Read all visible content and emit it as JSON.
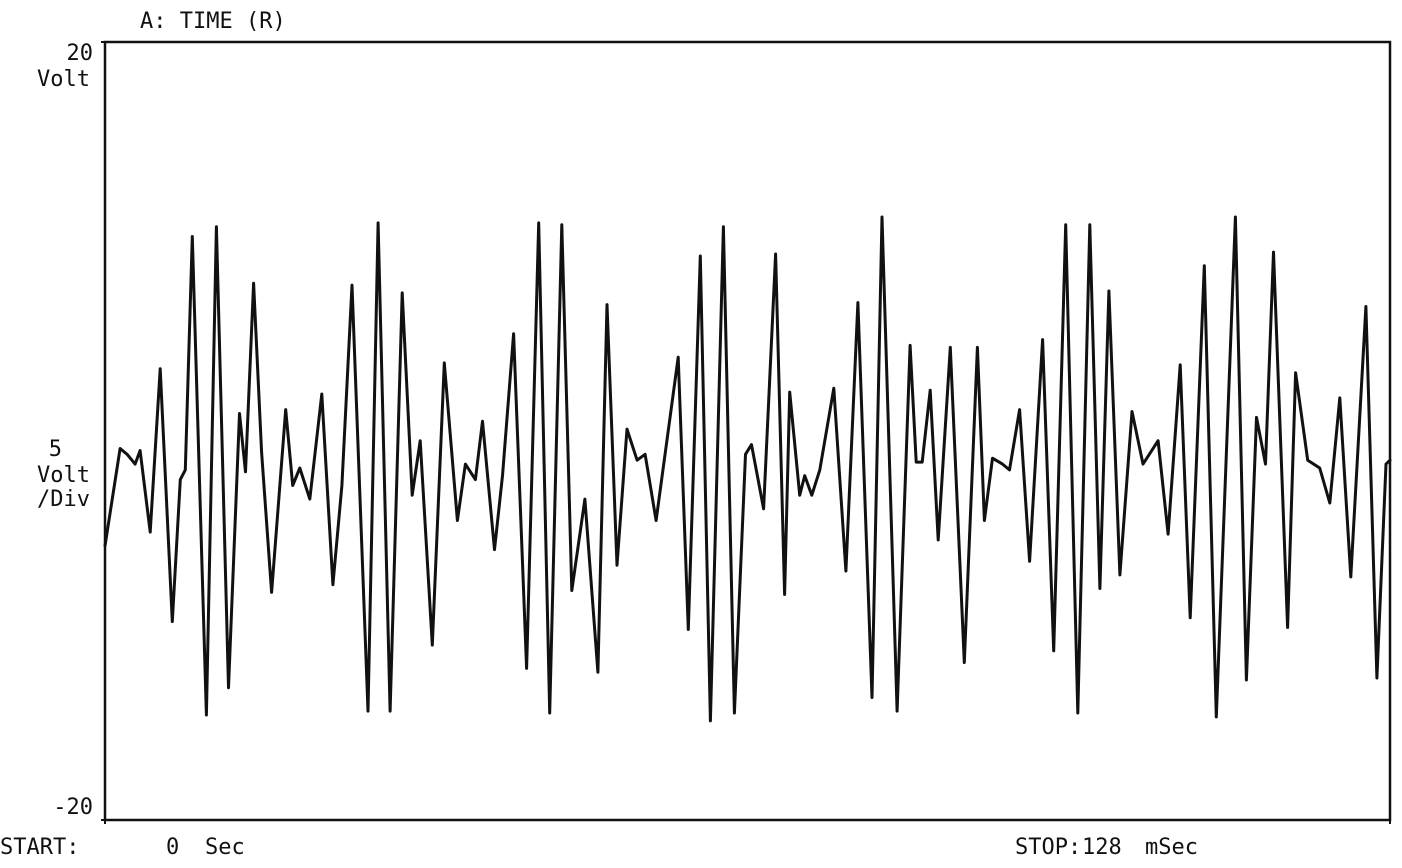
{
  "chart_data": {
    "type": "line",
    "title": "A: TIME (R)",
    "ylabel": "Volt",
    "y_scale": {
      "value": 5,
      "unit": "Volt",
      "per": "/Div"
    },
    "start_label": "START:",
    "start_unit": "Sec",
    "stop_label": "STOP:",
    "stop_unit": "mSec",
    "xlim": [
      0,
      128
    ],
    "xticks": [
      0,
      128
    ],
    "ylim": [
      -20,
      20
    ],
    "yticks": [
      -20,
      20
    ],
    "color": "#111111",
    "grid": false,
    "x": [
      0,
      1.5,
      2.2,
      3.0,
      3.5,
      4.5,
      5.5,
      6.7,
      7.5,
      8.0,
      8.7,
      10.1,
      11.1,
      12.3,
      13.4,
      14.0,
      14.8,
      15.6,
      16.6,
      18.0,
      18.7,
      19.4,
      20.4,
      21.6,
      22.7,
      23.6,
      24.6,
      26.2,
      27.2,
      28.4,
      29.6,
      30.6,
      31.4,
      32.6,
      33.8,
      35.1,
      35.9,
      36.9,
      37.6,
      38.8,
      39.6,
      40.7,
      42.0,
      43.2,
      44.3,
      45.5,
      46.5,
      47.8,
      49.1,
      50.0,
      51.0,
      52.0,
      53.0,
      53.8,
      54.9,
      57.1,
      58.1,
      59.3,
      60.3,
      61.6,
      62.7,
      63.8,
      64.4,
      65.6,
      66.8,
      67.7,
      68.2,
      69.2,
      69.7,
      70.4,
      71.2,
      72.6,
      73.8,
      75.0,
      76.4,
      77.4,
      78.9,
      80.2,
      80.8,
      81.4,
      82.2,
      83.0,
      84.2,
      85.6,
      86.9,
      87.6,
      88.4,
      89.4,
      90.1,
      91.1,
      92.1,
      93.4,
      94.5,
      95.7,
      96.9,
      98.1,
      99.1,
      100.0,
      101.1,
      102.3,
      103.4,
      104.9,
      105.9,
      107.1,
      108.1,
      109.5,
      110.7,
      112.6,
      113.7,
      114.7,
      115.6,
      116.4,
      117.8,
      118.6,
      119.8,
      121.0,
      122.0,
      123.0,
      124.1,
      125.6,
      126.7,
      127.6,
      128.0
    ],
    "values": [
      -5.9,
      -0.9,
      -1.2,
      -1.7,
      -1.0,
      -5.2,
      3.2,
      -9.8,
      -2.5,
      -2.0,
      10.0,
      -14.6,
      10.5,
      -13.2,
      0.9,
      -2.1,
      7.6,
      -1.1,
      -8.3,
      1.1,
      -2.8,
      -1.9,
      -3.5,
      1.9,
      -7.9,
      -2.8,
      7.5,
      -14.4,
      10.7,
      -14.4,
      7.1,
      -3.3,
      -0.5,
      -11.0,
      3.5,
      -4.6,
      -1.7,
      -2.5,
      0.5,
      -6.1,
      -2.3,
      5.0,
      -12.2,
      10.7,
      -14.5,
      10.6,
      -8.2,
      -3.5,
      -12.4,
      6.5,
      -6.9,
      0.1,
      -1.5,
      -1.2,
      -4.6,
      3.8,
      -10.2,
      9.0,
      -14.9,
      10.5,
      -14.5,
      -1.2,
      -0.7,
      -4.0,
      9.1,
      -8.4,
      2.0,
      -3.3,
      -2.3,
      -3.3,
      -2.0,
      2.2,
      -7.2,
      6.6,
      -13.7,
      11.0,
      -14.4,
      4.4,
      -1.6,
      -1.6,
      2.1,
      -5.6,
      4.3,
      -11.9,
      4.3,
      -4.6,
      -1.4,
      -1.7,
      -2.0,
      1.1,
      -6.7,
      4.7,
      -11.3,
      10.6,
      -14.5,
      10.6,
      -8.1,
      7.2,
      -7.4,
      1.0,
      -1.7,
      -0.5,
      -5.3,
      3.4,
      -9.6,
      8.5,
      -14.7,
      11.0,
      -12.8,
      0.7,
      -1.7,
      9.2,
      -10.1,
      3.0,
      -1.5,
      -1.9,
      -3.7,
      1.7,
      -7.5,
      6.4,
      -12.7,
      -1.7,
      -1.5
    ]
  }
}
